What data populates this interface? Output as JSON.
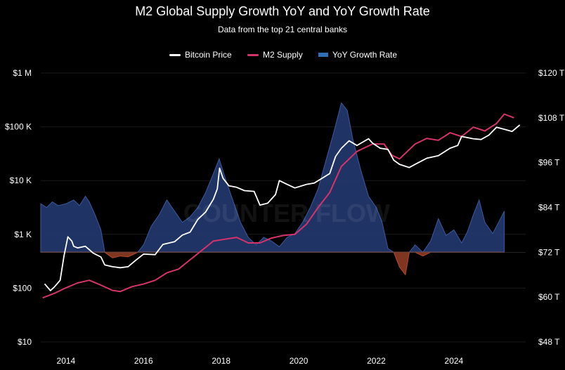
{
  "chart_data": {
    "type": "line",
    "title": "M2 Global Supply Growth YoY and YoY Growth Rate",
    "subtitle": "Data from the top 21 central banks",
    "watermark": "COUNTER FLOW",
    "legend": [
      {
        "name": "Bitcoin Price",
        "color": "#ffffff",
        "kind": "line"
      },
      {
        "name": "M2 Supply",
        "color": "#d6336c",
        "kind": "line"
      },
      {
        "name": "YoY Growth Rate",
        "color": "#2f6fb5",
        "kind": "bar"
      }
    ],
    "x_axis": {
      "range": [
        2013.35,
        2025.85
      ],
      "ticks": [
        "2014",
        "2016",
        "2018",
        "2020",
        "2022",
        "2024"
      ],
      "tick_values": [
        2014,
        2016,
        2018,
        2020,
        2022,
        2024
      ]
    },
    "left_axis": {
      "scale": "log",
      "range": [
        10,
        1000000
      ],
      "ticks": [
        "$10",
        "$100",
        "$1 K",
        "$10 K",
        "$100 K",
        "$1 M"
      ],
      "tick_values": [
        10,
        100,
        1000,
        10000,
        100000,
        1000000
      ]
    },
    "right_axis": {
      "range": [
        48,
        120
      ],
      "ticks": [
        "$48 T",
        "$60 T",
        "$72 T",
        "$84 T",
        "$96 T",
        "$108 T",
        "$120 T"
      ],
      "tick_values": [
        48,
        60,
        72,
        84,
        96,
        108,
        120
      ]
    },
    "series": [
      {
        "name": "Bitcoin Price",
        "axis": "left",
        "x": [
          2013.45,
          2013.6,
          2013.7,
          2013.85,
          2013.95,
          2014.05,
          2014.15,
          2014.2,
          2014.3,
          2014.5,
          2014.7,
          2014.9,
          2015.0,
          2015.2,
          2015.4,
          2015.6,
          2015.8,
          2016.0,
          2016.3,
          2016.5,
          2016.8,
          2017.0,
          2017.2,
          2017.4,
          2017.6,
          2017.8,
          2017.9,
          2017.96,
          2018.05,
          2018.2,
          2018.4,
          2018.6,
          2018.85,
          2019.0,
          2019.2,
          2019.4,
          2019.5,
          2019.7,
          2019.9,
          2020.2,
          2020.4,
          2020.6,
          2020.8,
          2020.95,
          2021.1,
          2021.3,
          2021.5,
          2021.8,
          2021.9,
          2022.1,
          2022.3,
          2022.45,
          2022.6,
          2022.85,
          2023.0,
          2023.3,
          2023.6,
          2023.9,
          2024.1,
          2024.2,
          2024.5,
          2024.7,
          2024.9,
          2025.1,
          2025.3,
          2025.5,
          2025.7
        ],
        "values": [
          120,
          90,
          105,
          140,
          400,
          900,
          750,
          600,
          560,
          600,
          450,
          380,
          270,
          250,
          240,
          250,
          330,
          430,
          420,
          650,
          730,
          970,
          1100,
          1900,
          2600,
          4500,
          7000,
          17000,
          11000,
          8000,
          7500,
          6500,
          6300,
          3500,
          3800,
          5500,
          10000,
          8500,
          7300,
          8500,
          9000,
          11000,
          13500,
          28000,
          40000,
          55000,
          45000,
          60000,
          50000,
          40000,
          38000,
          24000,
          20000,
          17500,
          20000,
          26000,
          29000,
          40000,
          45000,
          66000,
          60000,
          58000,
          70000,
          98000,
          90000,
          82000,
          108000
        ]
      },
      {
        "name": "M2 Supply",
        "axis": "right",
        "x": [
          2013.4,
          2013.7,
          2014.0,
          2014.3,
          2014.6,
          2014.9,
          2015.2,
          2015.4,
          2015.7,
          2016.0,
          2016.3,
          2016.6,
          2016.9,
          2017.2,
          2017.5,
          2017.8,
          2018.1,
          2018.4,
          2018.7,
          2019.0,
          2019.3,
          2019.6,
          2019.9,
          2020.2,
          2020.5,
          2020.8,
          2021.1,
          2021.5,
          2021.9,
          2022.2,
          2022.4,
          2022.6,
          2022.8,
          2023.0,
          2023.3,
          2023.6,
          2023.9,
          2024.2,
          2024.5,
          2024.8,
          2025.1,
          2025.3,
          2025.55
        ],
        "values": [
          59.8,
          61.0,
          62.5,
          63.8,
          64.5,
          63.2,
          61.8,
          61.5,
          62.8,
          63.5,
          64.5,
          66.5,
          67.5,
          70.0,
          72.5,
          75.0,
          75.5,
          76.0,
          74.5,
          74.5,
          75.8,
          76.5,
          76.8,
          79.5,
          84.0,
          88.0,
          95.0,
          99.0,
          101.0,
          101.0,
          98.0,
          97.0,
          99.0,
          101.0,
          102.5,
          102.0,
          104.0,
          103.0,
          105.5,
          104.5,
          106.5,
          109.0,
          108.0
        ]
      },
      {
        "name": "YoY Growth Rate",
        "axis": "right",
        "x": [
          2013.35,
          2013.5,
          2013.65,
          2013.8,
          2014.0,
          2014.2,
          2014.35,
          2014.5,
          2014.6,
          2014.75,
          2014.9,
          2015.0,
          2015.2,
          2015.4,
          2015.6,
          2015.75,
          2015.85,
          2016.0,
          2016.2,
          2016.4,
          2016.6,
          2016.8,
          2017.0,
          2017.2,
          2017.4,
          2017.6,
          2017.8,
          2017.95,
          2018.1,
          2018.3,
          2018.5,
          2018.7,
          2018.9,
          2019.1,
          2019.3,
          2019.5,
          2019.7,
          2019.9,
          2020.1,
          2020.3,
          2020.5,
          2020.7,
          2020.9,
          2021.0,
          2021.1,
          2021.25,
          2021.4,
          2021.6,
          2021.8,
          2022.0,
          2022.15,
          2022.3,
          2022.45,
          2022.6,
          2022.75,
          2022.85,
          2023.0,
          2023.2,
          2023.4,
          2023.6,
          2023.8,
          2024.0,
          2024.2,
          2024.35,
          2024.5,
          2024.65,
          2024.8,
          2025.0,
          2025.15,
          2025.3
        ],
        "values": [
          85.0,
          84.0,
          85.5,
          84.5,
          85.0,
          86.0,
          84.5,
          87.0,
          85.5,
          82.0,
          78.0,
          72.0,
          70.5,
          71.0,
          70.8,
          71.5,
          72.0,
          74.0,
          79.0,
          82.0,
          86.0,
          83.0,
          80.0,
          81.5,
          84.0,
          88.0,
          93.0,
          97.0,
          92.0,
          86.0,
          80.0,
          76.0,
          74.0,
          76.0,
          75.0,
          73.5,
          76.0,
          77.0,
          80.0,
          84.0,
          89.0,
          96.5,
          104.0,
          108.0,
          112.0,
          110.0,
          102.0,
          94.0,
          87.0,
          84.0,
          80.0,
          73.0,
          72.0,
          68.0,
          66.0,
          72.0,
          74.0,
          71.0,
          75.0,
          81.0,
          76.5,
          78.0,
          74.5,
          77.5,
          82.0,
          86.0,
          80.0,
          77.0,
          80.0,
          83.0
        ]
      }
    ]
  }
}
